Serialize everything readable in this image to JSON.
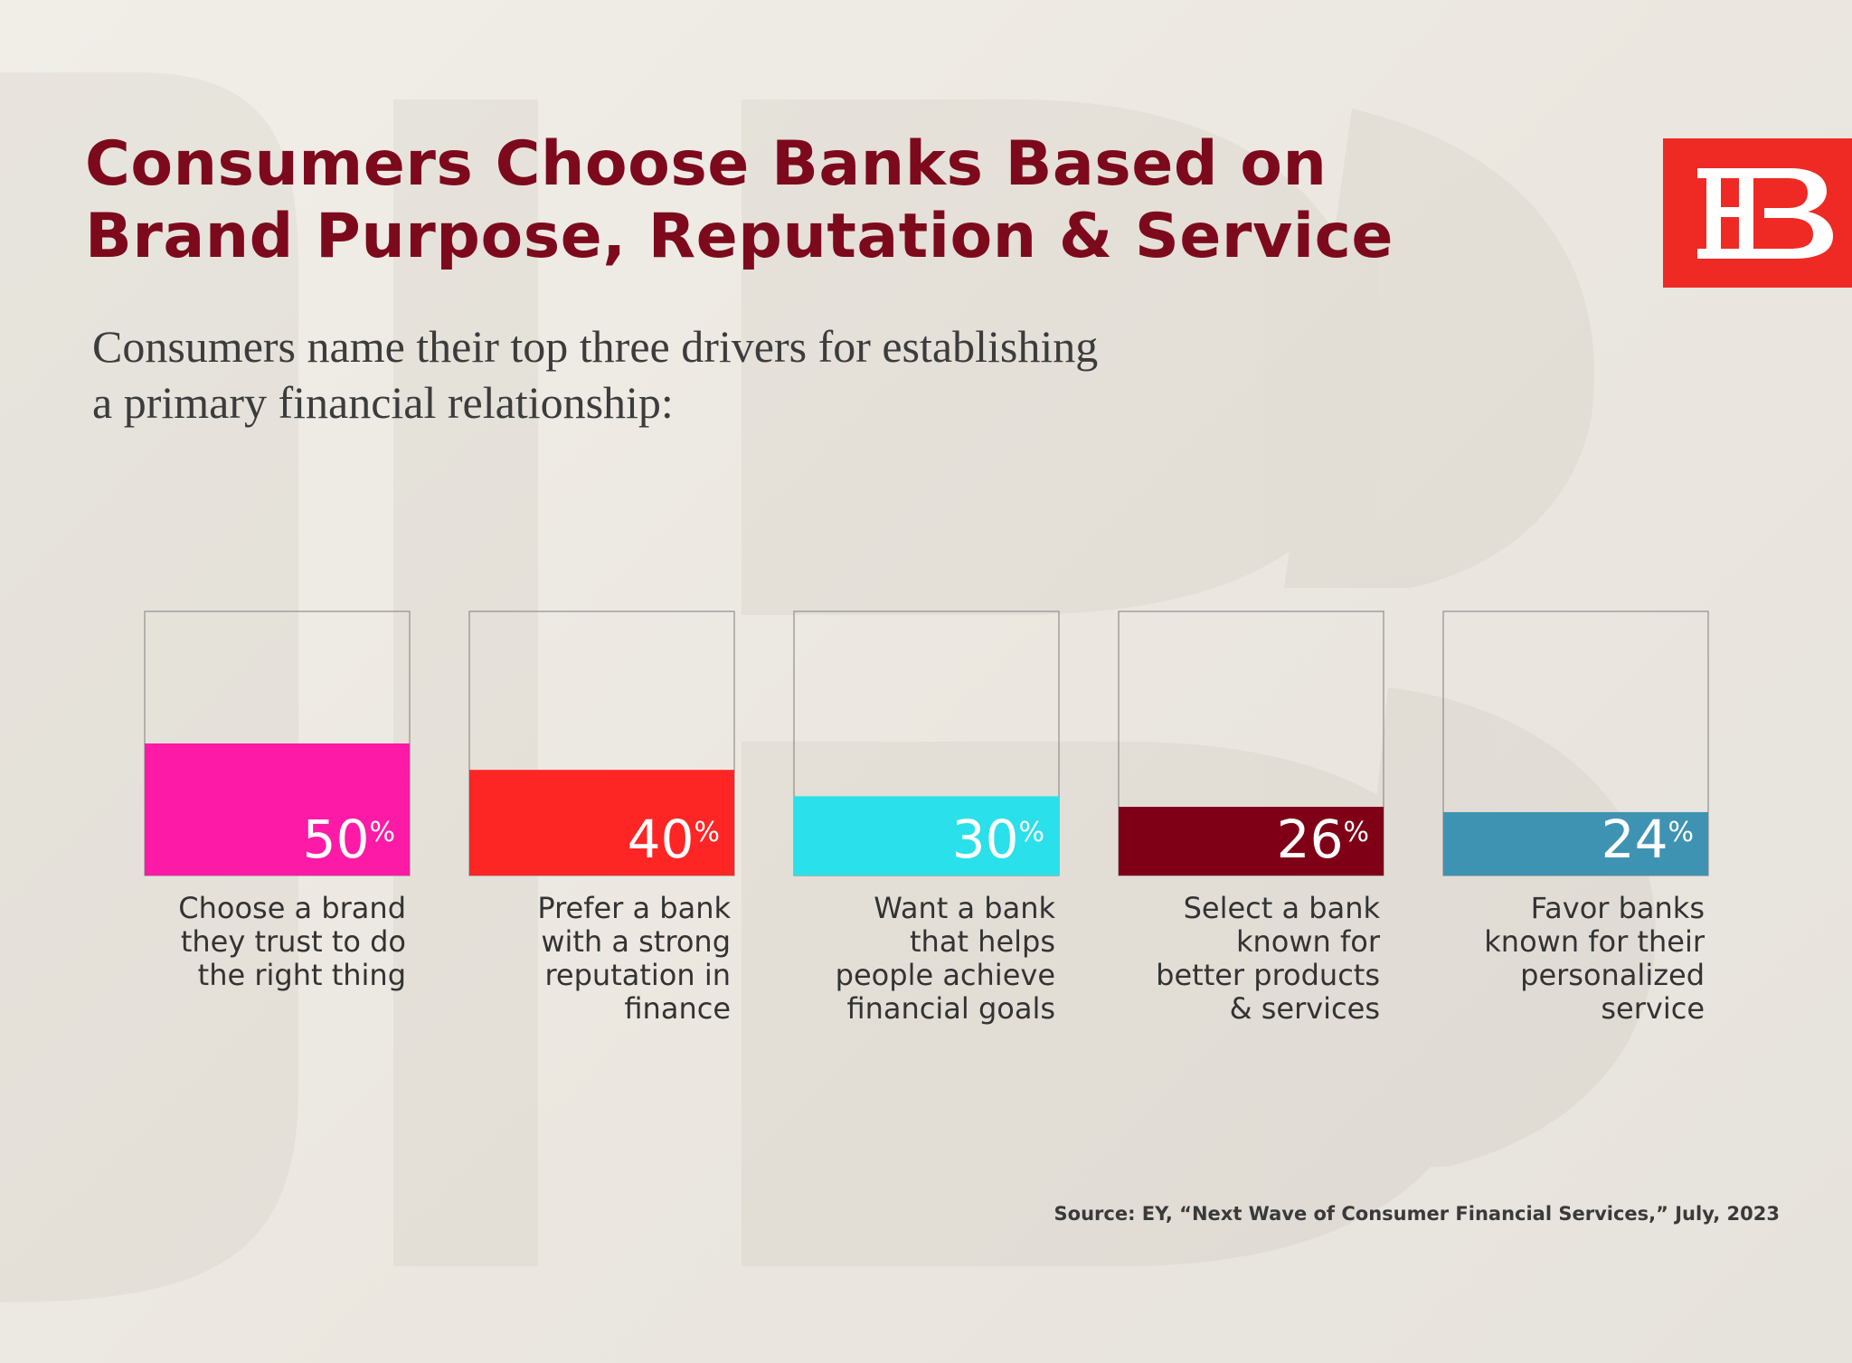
{
  "title_lines": [
    "Consumers Choose Banks Based on",
    "Brand Purpose, Reputation & Service"
  ],
  "subtitle_lines": [
    "Consumers name their top three drivers for establishing",
    "a primary financial relationship:"
  ],
  "logo": {
    "icon": "hb-monogram-logo",
    "color": "#ef2a24"
  },
  "colors": {
    "title": "#7d0a1c",
    "background": "#eeebe5",
    "box_border": "#8f8f8f"
  },
  "chart_data": {
    "type": "bar",
    "ylim": [
      0,
      100
    ],
    "unit": "%",
    "categories": [
      [
        "Choose a brand",
        "they trust to do",
        "the right thing"
      ],
      [
        "Prefer a bank",
        "with a strong",
        "reputation in",
        "finance"
      ],
      [
        "Want a bank",
        "that helps",
        "people achieve",
        "financial goals"
      ],
      [
        "Select a bank",
        "known for",
        "better products",
        "& services"
      ],
      [
        "Favor banks",
        "known for their",
        "personalized",
        "service"
      ]
    ],
    "values": [
      50,
      40,
      30,
      26,
      24
    ],
    "bar_colors": [
      "#fd1aa6",
      "#fe2525",
      "#2ae0ea",
      "#7f0016",
      "#3f93b2"
    ]
  },
  "source": "Source: EY, “Next Wave of Consumer Financial Services,” July, 2023"
}
